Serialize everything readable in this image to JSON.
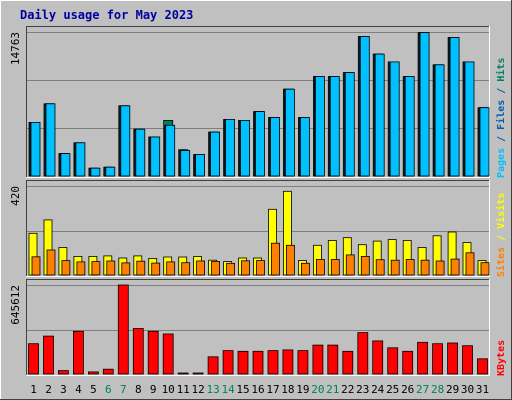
{
  "colors": {
    "background": "#c0c0c0",
    "plot_bg": "#c0c0c0",
    "grid": "#7f7f7f",
    "title": "#0000a0",
    "pages": "#00c0ff",
    "files": "#0060b0",
    "hits": "#008060",
    "sites": "#ff8000",
    "visits": "#ffff00",
    "kbytes": "#ff0000",
    "weekend": "#00805c",
    "weekday": "#000000"
  },
  "chart_data": {
    "type": "bar",
    "title": "Daily usage for May 2023",
    "categories": [
      "1",
      "2",
      "3",
      "4",
      "5",
      "6",
      "7",
      "8",
      "9",
      "10",
      "11",
      "12",
      "13",
      "14",
      "15",
      "16",
      "17",
      "18",
      "19",
      "20",
      "21",
      "22",
      "23",
      "24",
      "25",
      "26",
      "27",
      "28",
      "29",
      "30",
      "31"
    ],
    "weekend_days": [
      "6",
      "7",
      "13",
      "14",
      "20",
      "21",
      "27",
      "28"
    ],
    "panels": [
      {
        "id": "top",
        "ymax_label": "14763",
        "ymax": 14763,
        "side_label": [
          {
            "text": "Pages",
            "color_key": "pages"
          },
          {
            "text": " / ",
            "color_key": "files"
          },
          {
            "text": "Files",
            "color_key": "files"
          },
          {
            "text": " / ",
            "color_key": "files"
          },
          {
            "text": "Hits",
            "color_key": "hits"
          }
        ],
        "series": [
          {
            "name": "Hits",
            "color_key": "hits",
            "values": [
              5500,
              7400,
              2300,
              3400,
              800,
              900,
              7200,
              4800,
              4000,
              5700,
              2700,
              2200,
              4500,
              5800,
              5700,
              6600,
              6000,
              8900,
              6000,
              10200,
              10200,
              10600,
              14300,
              12500,
              11700,
              10200,
              14700,
              11400,
              14200,
              11700,
              7000
            ]
          },
          {
            "name": "Files",
            "color_key": "files",
            "values": [
              5500,
              7400,
              2300,
              3400,
              800,
              900,
              7200,
              4800,
              4000,
              5200,
              2600,
              2200,
              4500,
              5800,
              5700,
              6600,
              6000,
              8900,
              6000,
              10200,
              10200,
              10600,
              14300,
              12500,
              11700,
              10200,
              14700,
              11400,
              14200,
              11700,
              7000
            ]
          },
          {
            "name": "Pages",
            "color_key": "pages",
            "values": [
              5500,
              7400,
              2300,
              3400,
              800,
              900,
              7200,
              4800,
              4000,
              5200,
              2600,
              2200,
              4500,
              5800,
              5700,
              6600,
              6000,
              8900,
              6000,
              10200,
              10200,
              10600,
              14300,
              12500,
              11700,
              10200,
              14700,
              11400,
              14200,
              11700,
              7000
            ]
          }
        ]
      },
      {
        "id": "middle",
        "ymax_label": "420",
        "ymax": 420,
        "side_label": [
          {
            "text": "Sites",
            "color_key": "sites"
          },
          {
            "text": " / ",
            "color_key": "visits"
          },
          {
            "text": "Visits",
            "color_key": "visits"
          }
        ],
        "series": [
          {
            "name": "Visits",
            "color_key": "visits",
            "values": [
              197,
              260,
              130,
              88,
              88,
              90,
              80,
              90,
              78,
              85,
              85,
              87,
              70,
              63,
              80,
              80,
              310,
              395,
              68,
              140,
              163,
              176,
              143,
              160,
              167,
              163,
              130,
              185,
              203,
              153,
              68
            ]
          },
          {
            "name": "Sites",
            "color_key": "sites",
            "values": [
              86,
              118,
              68,
              62,
              63,
              66,
              57,
              65,
              56,
              62,
              58,
              66,
              64,
              55,
              67,
              68,
              150,
              140,
              55,
              73,
              73,
              95,
              88,
              72,
              70,
              73,
              70,
              66,
              75,
              105,
              58
            ]
          }
        ]
      },
      {
        "id": "bottom",
        "ymax_label": "645612",
        "ymax": 645612,
        "side_label": [
          {
            "text": "KBytes",
            "color_key": "kbytes"
          }
        ],
        "series": [
          {
            "name": "KBytes",
            "color_key": "kbytes",
            "values": [
              220000,
              275000,
              25000,
              310000,
              15000,
              35000,
              645612,
              330000,
              310000,
              290000,
              6000,
              6000,
              125000,
              170000,
              165000,
              165000,
              170000,
              175000,
              170000,
              210000,
              210000,
              165000,
              300000,
              240000,
              190000,
              165000,
              230000,
              220000,
              225000,
              205000,
              110000
            ]
          }
        ]
      }
    ]
  }
}
